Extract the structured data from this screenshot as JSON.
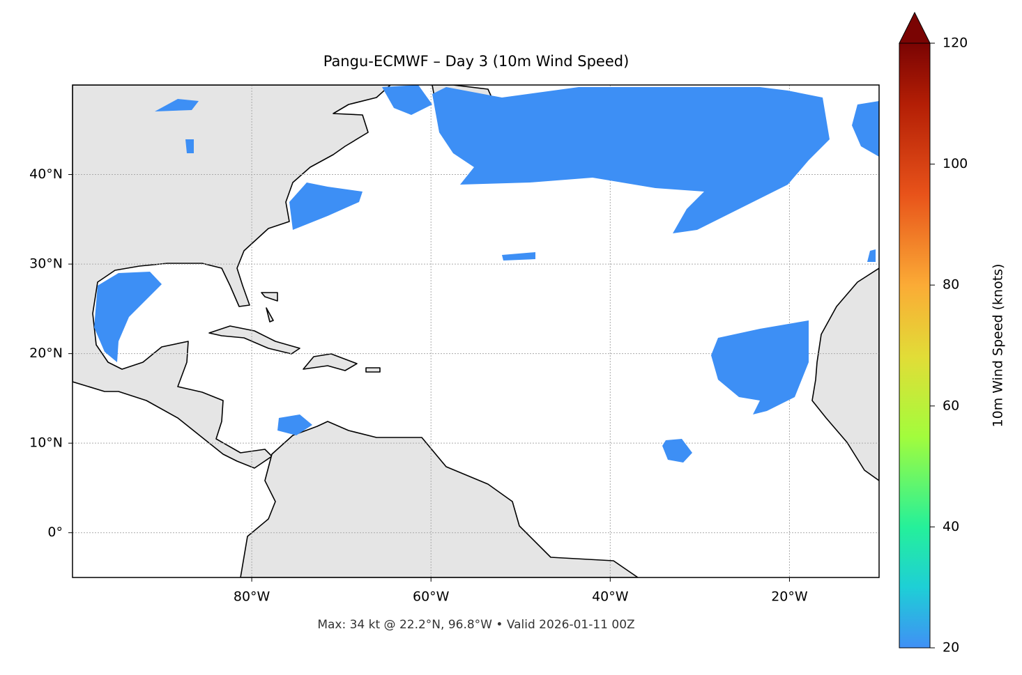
{
  "title": "Pangu-ECMWF – Day 3 (10m Wind Speed)",
  "footnote": "Max: 34 kt @ 22.2°N, 96.8°W • Valid 2026-01-11 00Z",
  "map": {
    "xlim": [
      -100,
      -10
    ],
    "ylim": [
      -5,
      50
    ],
    "grid": true,
    "xticks": [
      {
        "value": -80,
        "label": "80°W"
      },
      {
        "value": -60,
        "label": "60°W"
      },
      {
        "value": -40,
        "label": "40°W"
      },
      {
        "value": -20,
        "label": "20°W"
      }
    ],
    "yticks": [
      {
        "value": 0,
        "label": "0°"
      },
      {
        "value": 10,
        "label": "10°N"
      },
      {
        "value": 20,
        "label": "20°N"
      },
      {
        "value": 30,
        "label": "30°N"
      },
      {
        "value": 40,
        "label": "40°N"
      }
    ]
  },
  "colorbar": {
    "label": "10m Wind Speed (knots)",
    "range": [
      20,
      120
    ],
    "ticks": [
      20,
      40,
      60,
      80,
      100,
      120
    ]
  }
}
